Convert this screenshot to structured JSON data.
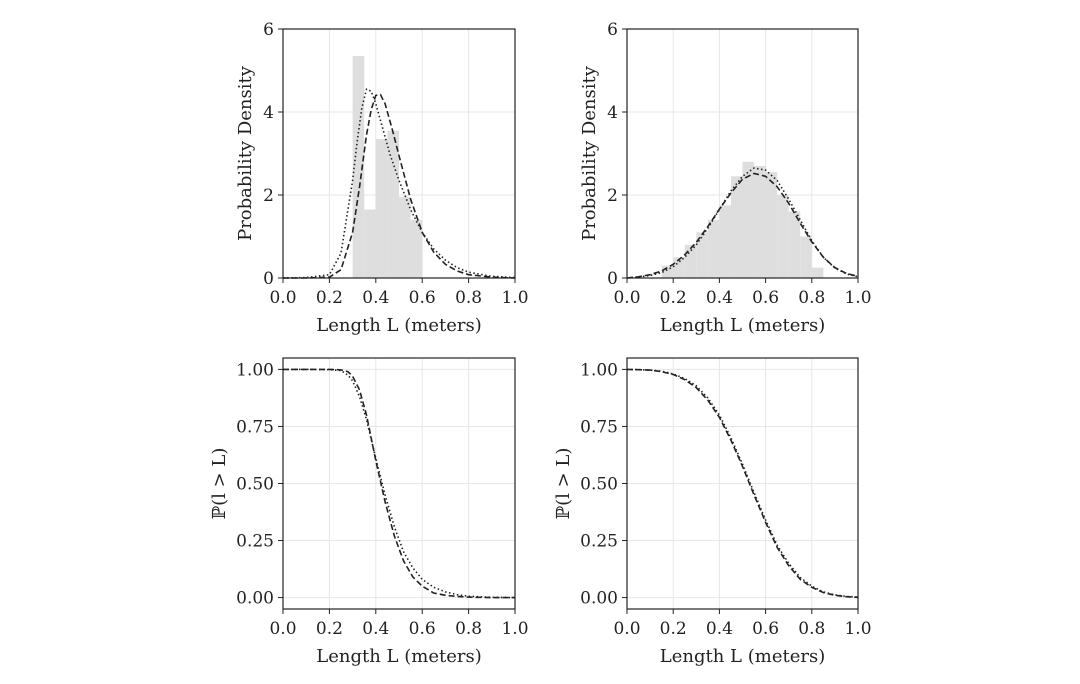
{
  "chart_data": [
    {
      "type": "histogram+line",
      "panel": "top-left",
      "xlabel": "Length L (meters)",
      "ylabel": "Probability Density",
      "xlim": [
        0.0,
        1.0
      ],
      "ylim": [
        0,
        6
      ],
      "xticks": [
        "0.0",
        "0.2",
        "0.4",
        "0.6",
        "0.8",
        "1.0"
      ],
      "yticks": [
        "0",
        "2",
        "4",
        "6"
      ],
      "grid": true,
      "histogram": {
        "bin_edges": [
          0.3,
          0.35,
          0.4,
          0.45,
          0.5,
          0.55,
          0.6,
          0.65
        ],
        "values": [
          5.35,
          1.65,
          3.35,
          3.55,
          1.95,
          1.4,
          0.0
        ]
      },
      "series": [
        {
          "style": "dashed",
          "x": [
            0.0,
            0.1,
            0.2,
            0.25,
            0.3,
            0.33,
            0.36,
            0.38,
            0.4,
            0.42,
            0.44,
            0.47,
            0.5,
            0.55,
            0.6,
            0.65,
            0.7,
            0.75,
            0.8,
            0.9,
            1.0
          ],
          "values": [
            0.0,
            0.0,
            0.02,
            0.2,
            1.1,
            2.2,
            3.45,
            4.05,
            4.4,
            4.42,
            4.2,
            3.6,
            2.95,
            1.9,
            1.1,
            0.62,
            0.33,
            0.17,
            0.08,
            0.02,
            0.0
          ]
        },
        {
          "style": "dotted",
          "x": [
            0.0,
            0.1,
            0.2,
            0.25,
            0.3,
            0.32,
            0.34,
            0.36,
            0.38,
            0.4,
            0.43,
            0.46,
            0.5,
            0.55,
            0.6,
            0.65,
            0.7,
            0.75,
            0.8,
            0.9,
            1.0
          ],
          "values": [
            0.0,
            0.01,
            0.08,
            0.6,
            2.35,
            3.3,
            4.1,
            4.55,
            4.5,
            4.2,
            3.6,
            3.0,
            2.35,
            1.65,
            1.1,
            0.7,
            0.43,
            0.25,
            0.14,
            0.04,
            0.01
          ]
        }
      ]
    },
    {
      "type": "histogram+line",
      "panel": "top-right",
      "xlabel": "Length L (meters)",
      "ylabel": "Probability Density",
      "xlim": [
        0.0,
        1.0
      ],
      "ylim": [
        0,
        6
      ],
      "xticks": [
        "0.0",
        "0.2",
        "0.4",
        "0.6",
        "0.8",
        "1.0"
      ],
      "yticks": [
        "0",
        "2",
        "4",
        "6"
      ],
      "grid": true,
      "histogram": {
        "bin_edges": [
          0.15,
          0.2,
          0.25,
          0.3,
          0.35,
          0.4,
          0.45,
          0.5,
          0.55,
          0.6,
          0.65,
          0.7,
          0.75,
          0.8,
          0.85
        ],
        "values": [
          0.3,
          0.5,
          0.8,
          1.1,
          1.4,
          1.75,
          2.45,
          2.8,
          2.7,
          2.55,
          2.0,
          1.6,
          1.0,
          0.25
        ]
      },
      "series": [
        {
          "style": "dashed",
          "x": [
            0.0,
            0.05,
            0.1,
            0.15,
            0.2,
            0.25,
            0.3,
            0.35,
            0.4,
            0.45,
            0.5,
            0.55,
            0.6,
            0.65,
            0.7,
            0.75,
            0.8,
            0.85,
            0.9,
            0.95,
            1.0
          ],
          "values": [
            0.0,
            0.03,
            0.08,
            0.17,
            0.33,
            0.56,
            0.86,
            1.24,
            1.66,
            2.05,
            2.38,
            2.52,
            2.45,
            2.2,
            1.8,
            1.32,
            0.87,
            0.5,
            0.25,
            0.11,
            0.04
          ]
        },
        {
          "style": "dotted",
          "x": [
            0.0,
            0.05,
            0.1,
            0.15,
            0.2,
            0.25,
            0.3,
            0.35,
            0.4,
            0.45,
            0.5,
            0.55,
            0.6,
            0.65,
            0.7,
            0.75,
            0.8,
            0.85,
            0.9,
            0.95,
            1.0
          ],
          "values": [
            0.0,
            0.02,
            0.06,
            0.13,
            0.27,
            0.5,
            0.8,
            1.2,
            1.65,
            2.1,
            2.45,
            2.65,
            2.6,
            2.35,
            1.9,
            1.4,
            0.9,
            0.5,
            0.24,
            0.1,
            0.03
          ]
        }
      ]
    },
    {
      "type": "line",
      "panel": "bottom-left",
      "xlabel": "Length L (meters)",
      "ylabel": "ℙ(l > L)",
      "xlim": [
        0.0,
        1.0
      ],
      "ylim": [
        -0.05,
        1.05
      ],
      "xticks": [
        "0.0",
        "0.2",
        "0.4",
        "0.6",
        "0.8",
        "1.0"
      ],
      "yticks": [
        "0.00",
        "0.25",
        "0.50",
        "0.75",
        "1.00"
      ],
      "grid": true,
      "series": [
        {
          "style": "dashed",
          "x": [
            0.0,
            0.1,
            0.2,
            0.25,
            0.28,
            0.3,
            0.33,
            0.36,
            0.4,
            0.44,
            0.48,
            0.52,
            0.56,
            0.6,
            0.65,
            0.7,
            0.75,
            0.8,
            0.9,
            1.0
          ],
          "values": [
            1.0,
            1.0,
            1.0,
            0.998,
            0.99,
            0.97,
            0.91,
            0.8,
            0.6,
            0.42,
            0.27,
            0.16,
            0.09,
            0.05,
            0.02,
            0.01,
            0.005,
            0.002,
            0.0,
            0.0
          ]
        },
        {
          "style": "dotted",
          "x": [
            0.0,
            0.1,
            0.2,
            0.25,
            0.28,
            0.3,
            0.33,
            0.36,
            0.4,
            0.44,
            0.48,
            0.52,
            0.56,
            0.6,
            0.65,
            0.7,
            0.75,
            0.8,
            0.9,
            1.0
          ],
          "values": [
            1.0,
            1.0,
            0.999,
            0.995,
            0.975,
            0.95,
            0.88,
            0.78,
            0.61,
            0.45,
            0.31,
            0.2,
            0.13,
            0.08,
            0.045,
            0.025,
            0.013,
            0.006,
            0.001,
            0.0
          ]
        }
      ]
    },
    {
      "type": "line",
      "panel": "bottom-right",
      "xlabel": "Length L (meters)",
      "ylabel": "ℙ(l > L)",
      "xlim": [
        0.0,
        1.0
      ],
      "ylim": [
        -0.05,
        1.05
      ],
      "xticks": [
        "0.0",
        "0.2",
        "0.4",
        "0.6",
        "0.8",
        "1.0"
      ],
      "yticks": [
        "0.00",
        "0.25",
        "0.50",
        "0.75",
        "1.00"
      ],
      "grid": true,
      "series": [
        {
          "style": "dashed",
          "x": [
            0.0,
            0.05,
            0.1,
            0.15,
            0.2,
            0.25,
            0.3,
            0.35,
            0.4,
            0.45,
            0.5,
            0.55,
            0.6,
            0.65,
            0.7,
            0.75,
            0.8,
            0.85,
            0.9,
            0.95,
            1.0
          ],
          "values": [
            1.0,
            0.999,
            0.997,
            0.99,
            0.978,
            0.955,
            0.92,
            0.865,
            0.79,
            0.69,
            0.575,
            0.45,
            0.33,
            0.22,
            0.14,
            0.08,
            0.045,
            0.022,
            0.01,
            0.004,
            0.001
          ]
        },
        {
          "style": "dotted",
          "x": [
            0.0,
            0.05,
            0.1,
            0.15,
            0.2,
            0.25,
            0.3,
            0.35,
            0.4,
            0.45,
            0.5,
            0.55,
            0.6,
            0.65,
            0.7,
            0.75,
            0.8,
            0.85,
            0.9,
            0.95,
            1.0
          ],
          "values": [
            1.0,
            0.999,
            0.997,
            0.992,
            0.98,
            0.96,
            0.928,
            0.875,
            0.8,
            0.7,
            0.585,
            0.46,
            0.34,
            0.23,
            0.15,
            0.088,
            0.05,
            0.025,
            0.012,
            0.005,
            0.002
          ]
        }
      ]
    }
  ]
}
